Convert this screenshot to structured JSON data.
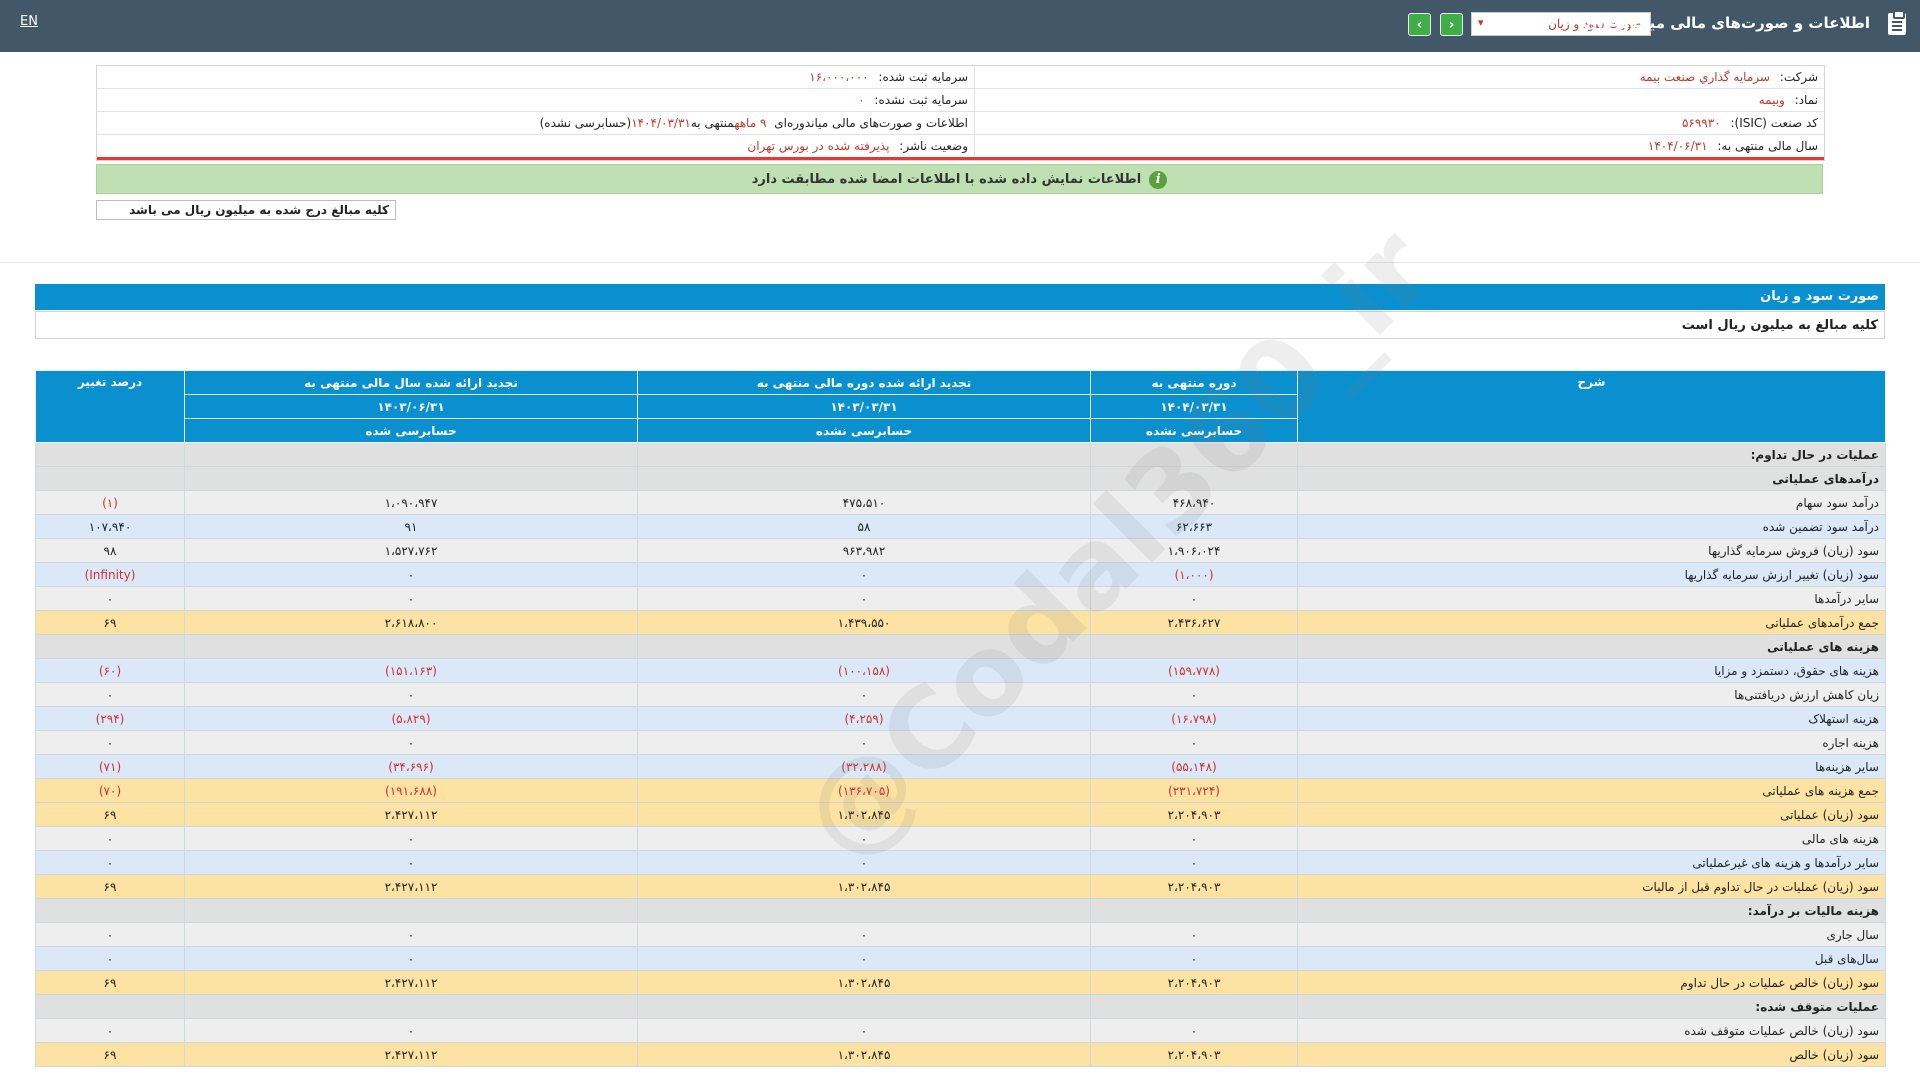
{
  "topbar": {
    "lang": "EN",
    "title": "اطلاعات و صورت‌های مالی میاندوره‌ای",
    "report_select": "صورت سود و زیان",
    "caret": "▾",
    "next": "›",
    "prev": "‹"
  },
  "info": {
    "company_label": "شرکت:",
    "company_value": "سرمايه گذاري صنعت بيمه",
    "capital_reg_label": "سرمایه ثبت شده:",
    "capital_reg_value": "۱۶،۰۰۰،۰۰۰",
    "symbol_label": "نماد:",
    "symbol_value": "وبیمه",
    "capital_unreg_label": "سرمایه ثبت نشده:",
    "capital_unreg_value": "۰",
    "isic_label": "کد صنعت (ISIC):",
    "isic_value": "۵۶۹۹۳۰",
    "report_desc_a": "اطلاعات و صورت‌های مالی میاندوره‌ای",
    "report_desc_b": "۹ ماهه",
    "report_desc_c": "منتهی به",
    "report_desc_d": "۱۴۰۴/۰۳/۳۱",
    "report_desc_e": "(حسابرسی نشده)",
    "fy_label": "سال مالی منتهی به:",
    "fy_value": "۱۴۰۴/۰۶/۳۱",
    "status_label": "وضعیت ناشر:",
    "status_value": "پذیرفته شده در بورس تهران"
  },
  "notice": "اطلاعات نمایش داده شده با اطلاعات امضا شده مطابقت دارد",
  "unit_box": "کلیه مبالغ درج شده به میلیون ریال می باشد",
  "section": {
    "title": "صورت سود و زیان",
    "note": "کلیه مبالغ به میلیون ریال است"
  },
  "watermark": "@Codal360_ir",
  "table": {
    "headers": {
      "desc": "شرح",
      "c1_title": "دوره منتهی به",
      "c1_date": "۱۴۰۴/۰۳/۳۱",
      "c1_audit": "حسابرسی نشده",
      "c2_title": "تجدید ارائه شده دوره مالی منتهی به",
      "c2_date": "۱۴۰۳/۰۳/۳۱",
      "c2_audit": "حسابرسی نشده",
      "c3_title": "تجدید ارائه شده سال مالی منتهی به",
      "c3_date": "۱۴۰۳/۰۶/۳۱",
      "c3_audit": "حسابرسی شده",
      "change": "درصد تغییر"
    },
    "rows": [
      {
        "type": "sect",
        "label": "عملیات در حال تداوم:",
        "v1": "",
        "v2": "",
        "v3": "",
        "pct": ""
      },
      {
        "type": "sect",
        "label": "درآمدهای عملیاتی",
        "v1": "",
        "v2": "",
        "v3": "",
        "pct": ""
      },
      {
        "type": "white",
        "label": "درآمد سود سهام",
        "v1": "۴۶۸،۹۴۰",
        "v2": "۴۷۵،۵۱۰",
        "v3": "۱،۰۹۰،۹۴۷",
        "pct": "(۱)"
      },
      {
        "type": "blue",
        "label": "درآمد سود تضمین شده",
        "v1": "۶۲،۶۶۳",
        "v2": "۵۸",
        "v3": "۹۱",
        "pct": "۱۰۷،۹۴۰"
      },
      {
        "type": "white",
        "label": "سود (زیان) فروش سرمایه گذاریها",
        "v1": "۱،۹۰۶،۰۲۴",
        "v2": "۹۶۳،۹۸۲",
        "v3": "۱،۵۲۷،۷۶۲",
        "pct": "۹۸"
      },
      {
        "type": "blue",
        "label": "سود (زیان) تغییر ارزش سرمایه گذاریها",
        "v1": "(۱،۰۰۰)",
        "v2": "۰",
        "v3": "۰",
        "pct": "(Infinity)"
      },
      {
        "type": "white",
        "label": "سایر درآمدها",
        "v1": "۰",
        "v2": "۰",
        "v3": "۰",
        "pct": "۰"
      },
      {
        "type": "total",
        "label": "جمع درآمدهای عملیاتی",
        "v1": "۲،۴۳۶،۶۲۷",
        "v2": "۱،۴۳۹،۵۵۰",
        "v3": "۲،۶۱۸،۸۰۰",
        "pct": "۶۹"
      },
      {
        "type": "sect",
        "label": "هزینه های عملیاتی",
        "v1": "",
        "v2": "",
        "v3": "",
        "pct": ""
      },
      {
        "type": "blue",
        "label": "هزینه های حقوق، دستمزد و مزایا",
        "v1": "(۱۵۹،۷۷۸)",
        "v2": "(۱۰۰،۱۵۸)",
        "v3": "(۱۵۱،۱۶۳)",
        "pct": "(۶۰)"
      },
      {
        "type": "white",
        "label": "زیان کاهش ارزش دریافتنی‌ها",
        "v1": "۰",
        "v2": "۰",
        "v3": "۰",
        "pct": "۰"
      },
      {
        "type": "blue",
        "label": "هزینه استهلاک",
        "v1": "(۱۶،۷۹۸)",
        "v2": "(۴،۲۵۹)",
        "v3": "(۵،۸۲۹)",
        "pct": "(۲۹۴)"
      },
      {
        "type": "white",
        "label": "هزینه اجاره",
        "v1": "۰",
        "v2": "۰",
        "v3": "۰",
        "pct": "۰"
      },
      {
        "type": "blue",
        "label": "سایر هزینه‌ها",
        "v1": "(۵۵،۱۴۸)",
        "v2": "(۳۲،۲۸۸)",
        "v3": "(۳۴،۶۹۶)",
        "pct": "(۷۱)"
      },
      {
        "type": "total",
        "label": "جمع هزینه های عملیاتی",
        "v1": "(۲۳۱،۷۲۴)",
        "v2": "(۱۳۶،۷۰۵)",
        "v3": "(۱۹۱،۶۸۸)",
        "pct": "(۷۰)"
      },
      {
        "type": "total",
        "label": "سود (زیان) عملیاتی",
        "v1": "۲،۲۰۴،۹۰۳",
        "v2": "۱،۳۰۲،۸۴۵",
        "v3": "۲،۴۲۷،۱۱۲",
        "pct": "۶۹"
      },
      {
        "type": "white",
        "label": "هزینه های مالی",
        "v1": "۰",
        "v2": "۰",
        "v3": "۰",
        "pct": "۰"
      },
      {
        "type": "blue",
        "label": "سایر درآمدها و هزینه های غیرعملیاتی",
        "v1": "۰",
        "v2": "۰",
        "v3": "۰",
        "pct": "۰"
      },
      {
        "type": "total",
        "label": "سود (زیان) عملیات در حال تداوم قبل از مالیات",
        "v1": "۲،۲۰۴،۹۰۳",
        "v2": "۱،۳۰۲،۸۴۵",
        "v3": "۲،۴۲۷،۱۱۲",
        "pct": "۶۹"
      },
      {
        "type": "sect",
        "label": "هزینه مالیات بر درآمد:",
        "v1": "",
        "v2": "",
        "v3": "",
        "pct": ""
      },
      {
        "type": "white",
        "label": "سال جاری",
        "v1": "۰",
        "v2": "۰",
        "v3": "۰",
        "pct": "۰"
      },
      {
        "type": "blue",
        "label": "سال‌های قبل",
        "v1": "۰",
        "v2": "۰",
        "v3": "۰",
        "pct": "۰"
      },
      {
        "type": "total",
        "label": "سود (زیان) خالص عملیات در حال تداوم",
        "v1": "۲،۲۰۴،۹۰۳",
        "v2": "۱،۳۰۲،۸۴۵",
        "v3": "۲،۴۲۷،۱۱۲",
        "pct": "۶۹"
      },
      {
        "type": "sect",
        "label": "عملیات متوقف شده:",
        "v1": "",
        "v2": "",
        "v3": "",
        "pct": ""
      },
      {
        "type": "white",
        "label": "سود (زیان) خالص عملیات متوقف شده",
        "v1": "۰",
        "v2": "۰",
        "v3": "۰",
        "pct": "۰"
      },
      {
        "type": "total",
        "label": "سود (زیان) خالص",
        "v1": "۲،۲۰۴،۹۰۳",
        "v2": "۱،۳۰۲،۸۴۵",
        "v3": "۲،۴۲۷،۱۱۲",
        "pct": "۶۹"
      }
    ]
  }
}
